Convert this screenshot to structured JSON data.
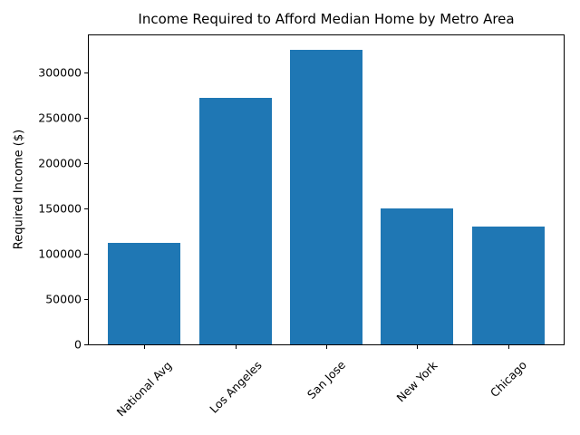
{
  "chart_data": {
    "type": "bar",
    "title": "Income Required to Afford Median Home by Metro Area",
    "ylabel": "Required Income ($)",
    "xlabel": "",
    "categories": [
      "National Avg",
      "Los Angeles",
      "San Jose",
      "New York",
      "Chicago"
    ],
    "values": [
      112000,
      272000,
      325000,
      150000,
      130000
    ],
    "yticks": [
      0,
      50000,
      100000,
      150000,
      200000,
      250000,
      300000
    ],
    "ylim": [
      0,
      341250
    ],
    "bar_color": "#1f77b4",
    "axis_color": "#000000",
    "background_color": "#ffffff",
    "grid": false,
    "legend": false,
    "xtick_rotation_deg": 45
  }
}
